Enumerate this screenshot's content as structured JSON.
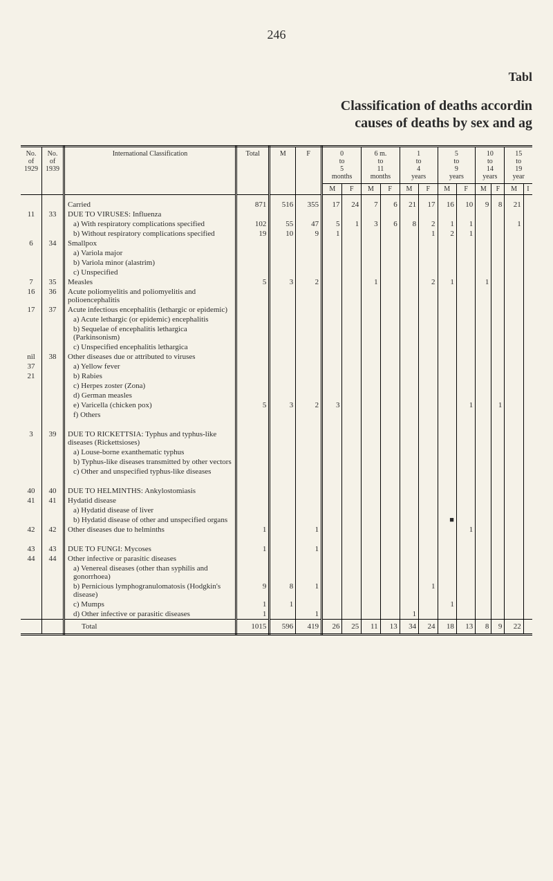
{
  "page_number": "246",
  "table_label": "Tabl",
  "title_line1": "Classification of deaths accordin",
  "title_line2": "causes of deaths by sex and ag",
  "header": {
    "no_of_1929": "No.\nof\n1929",
    "no_of_1939": "No.\nof\n1939",
    "intl_class": "International Classification",
    "total": "Total",
    "m": "M",
    "f": "F",
    "ranges": [
      {
        "top": "0\nto\n5\nmonths",
        "mf": [
          "M",
          "F"
        ]
      },
      {
        "top": "6 m.\nto\n11\nmonths",
        "mf": [
          "M",
          "F"
        ]
      },
      {
        "top": "1\nto\n4\nyears",
        "mf": [
          "M",
          "F"
        ]
      },
      {
        "top": "5\nto\n9\nyears",
        "mf": [
          "M",
          "F"
        ]
      },
      {
        "top": "10\nto\n14\nyears",
        "mf": [
          "M",
          "F"
        ]
      },
      {
        "top": "15\nto\n19\nyear",
        "mf": [
          "M",
          "I"
        ]
      }
    ]
  },
  "rows": [
    {
      "n29": "",
      "n39": "",
      "desc": "Carried",
      "indent": 0,
      "total": "871",
      "m": "516",
      "f": "355",
      "vals": [
        "17",
        "24",
        "7",
        "6",
        "21",
        "17",
        "16",
        "10",
        "9",
        "8",
        "21",
        ""
      ]
    },
    {
      "n29": "11",
      "n39": "33",
      "desc": "DUE TO VIRUSES: Influenza",
      "indent": 0
    },
    {
      "desc": "a) With respiratory complications specified",
      "indent": 1,
      "total": "102",
      "m": "55",
      "f": "47",
      "vals": [
        "5",
        "1",
        "3",
        "6",
        "8",
        "2",
        "1",
        "1",
        "",
        "",
        "1",
        ""
      ]
    },
    {
      "desc": "b) Without respiratory complications specified",
      "indent": 1,
      "total": "19",
      "m": "10",
      "f": "9",
      "vals": [
        "1",
        "",
        "",
        "",
        "",
        "1",
        "2",
        "1",
        "",
        "",
        "",
        ""
      ]
    },
    {
      "n29": "6",
      "n39": "34",
      "desc": "Smallpox",
      "indent": 0
    },
    {
      "desc": "a) Variola major",
      "indent": 1
    },
    {
      "desc": "b) Variola minor (alastrim)",
      "indent": 1
    },
    {
      "desc": "c) Unspecified",
      "indent": 1
    },
    {
      "n29": "7",
      "n39": "35",
      "desc": "Measles",
      "indent": 0,
      "total": "5",
      "m": "3",
      "f": "2",
      "vals": [
        "",
        "",
        "1",
        "",
        "",
        "2",
        "1",
        "",
        "1",
        "",
        "",
        ""
      ]
    },
    {
      "n29": "16",
      "n39": "36",
      "desc": "Acute poliomyelitis and poliomyelitis and polioencephalitis",
      "indent": 0
    },
    {
      "n29": "17",
      "n39": "37",
      "desc": "Acute infectious encephalitis (lethargic or epidemic)",
      "indent": 0
    },
    {
      "desc": "a) Acute lethargic (or epidemic) encephalitis",
      "indent": 1
    },
    {
      "desc": "b) Sequelae of encephalitis lethargica (Parkinsonism)",
      "indent": 1
    },
    {
      "desc": "c) Unspecified encephalitis lethargica",
      "indent": 1
    },
    {
      "n29": "nil",
      "n39": "38",
      "desc": "Other diseases due or attributed to viruses",
      "indent": 0
    },
    {
      "n29": "37",
      "desc": "a) Yellow fever",
      "indent": 1
    },
    {
      "n29": "21",
      "desc": "b) Rabies",
      "indent": 1
    },
    {
      "desc": "c) Herpes zoster (Zona)",
      "indent": 1
    },
    {
      "desc": "d) German measles",
      "indent": 1
    },
    {
      "desc": "e) Varicella (chicken pox)",
      "indent": 1,
      "total": "5",
      "m": "3",
      "f": "2",
      "vals": [
        "3",
        "",
        "",
        "",
        "",
        "",
        "",
        "1",
        "",
        "1",
        "",
        ""
      ]
    },
    {
      "desc": "f) Others",
      "indent": 1
    },
    {
      "spacer": true
    },
    {
      "n29": "3",
      "n39": "39",
      "desc": "DUE TO RICKETTSIA: Typhus and typhus-like diseases (Rickettsioses)",
      "indent": 0
    },
    {
      "desc": "a) Louse-borne exanthematic typhus",
      "indent": 1
    },
    {
      "desc": "b) Typhus-like diseases transmitted by other vectors",
      "indent": 1
    },
    {
      "desc": "c) Other and unspecified typhus-like diseases",
      "indent": 1
    },
    {
      "spacer": true
    },
    {
      "n29": "40",
      "n39": "40",
      "desc": "DUE TO HELMINTHS: Ankylostomiasis",
      "indent": 0
    },
    {
      "n29": "41",
      "n39": "41",
      "desc": "Hydatid disease",
      "indent": 0
    },
    {
      "desc": "a) Hydatid disease of liver",
      "indent": 1
    },
    {
      "desc": "b) Hydatid disease of other and unspecified organs",
      "indent": 1,
      "vals": [
        "",
        "",
        "",
        "",
        "",
        "",
        "■",
        "",
        "",
        "",
        "",
        ""
      ]
    },
    {
      "n29": "42",
      "n39": "42",
      "desc": "Other diseases due to helminths",
      "indent": 0,
      "total": "1",
      "m": "",
      "f": "1",
      "vals": [
        "",
        "",
        "",
        "",
        "",
        "",
        "",
        "1",
        "",
        "",
        "",
        ""
      ]
    },
    {
      "spacer": true
    },
    {
      "n29": "43",
      "n39": "43",
      "desc": "DUE TO FUNGI: Mycoses",
      "indent": 0,
      "total": "1",
      "m": "",
      "f": "1"
    },
    {
      "n29": "44",
      "n39": "44",
      "desc": "Other infective or parasitic diseases",
      "indent": 0
    },
    {
      "desc": "a) Venereal diseases (other than syphilis and gonorrhoea)",
      "indent": 1
    },
    {
      "desc": "b) Pernicious lymphogranulomatosis (Hodgkin's disease)",
      "indent": 1,
      "total": "9",
      "m": "8",
      "f": "1",
      "vals": [
        "",
        "",
        "",
        "",
        "",
        "1",
        "",
        "",
        "",
        "",
        "",
        ""
      ]
    },
    {
      "desc": "c) Mumps",
      "indent": 1,
      "total": "1",
      "m": "1",
      "f": "",
      "vals": [
        "",
        "",
        "",
        "",
        "",
        "",
        "1",
        "",
        "",
        "",
        "",
        ""
      ]
    },
    {
      "desc": "d) Other infective or parasitic diseases",
      "indent": 1,
      "total": "1",
      "m": "",
      "f": "1",
      "vals": [
        "",
        "",
        "",
        "",
        "1",
        "",
        "",
        "",
        "",
        "",
        "",
        ""
      ]
    }
  ],
  "total_row": {
    "desc": "Total",
    "total": "1015",
    "m": "596",
    "f": "419",
    "vals": [
      "26",
      "25",
      "11",
      "13",
      "34",
      "24",
      "18",
      "13",
      "8",
      "9",
      "22",
      ""
    ]
  }
}
